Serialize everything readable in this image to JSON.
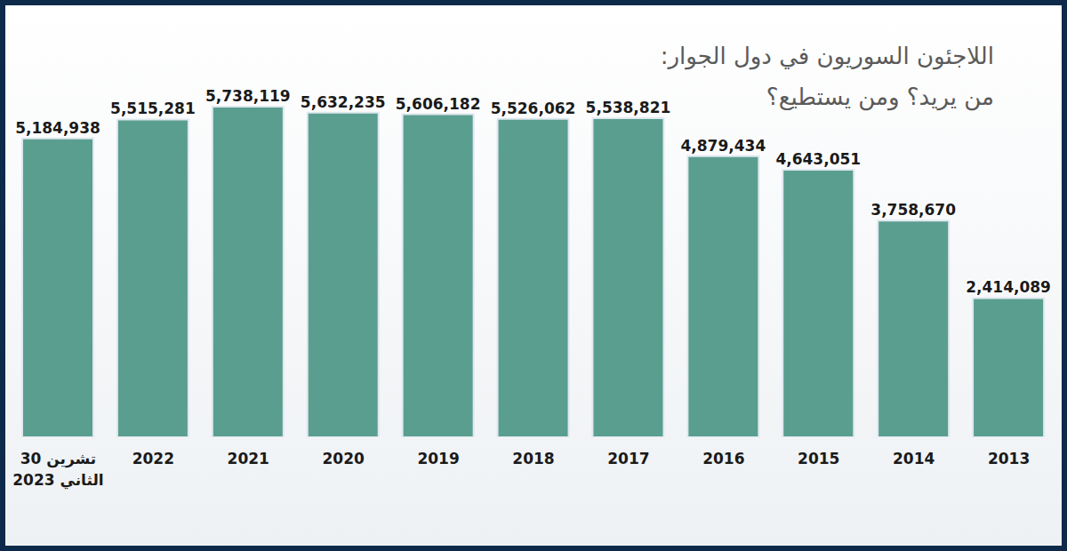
{
  "chart_data": {
    "type": "bar",
    "title": "اللاجئون السوريون في دول الجوار:",
    "subtitle": "من يريد؟ ومن يستطيع؟",
    "categories": [
      "30 تشرين الثاني 2023",
      "2022",
      "2021",
      "2020",
      "2019",
      "2018",
      "2017",
      "2016",
      "2015",
      "2014",
      "2013"
    ],
    "values": [
      5184938,
      5515281,
      5738119,
      5632235,
      5606182,
      5526062,
      5538821,
      4879434,
      4643051,
      3758670,
      2414089
    ],
    "value_labels": [
      "5,184,938",
      "5,515,281",
      "5,738,119",
      "5,632,235",
      "5,606,182",
      "5,526,062",
      "5,538,821",
      "4,879,434",
      "4,643,051",
      "3,758,670",
      "2,414,089"
    ],
    "color": "#5a9e8f",
    "ylim": [
      0,
      6000000
    ],
    "grid": false,
    "data_labels": true,
    "tick_labels": "x"
  }
}
